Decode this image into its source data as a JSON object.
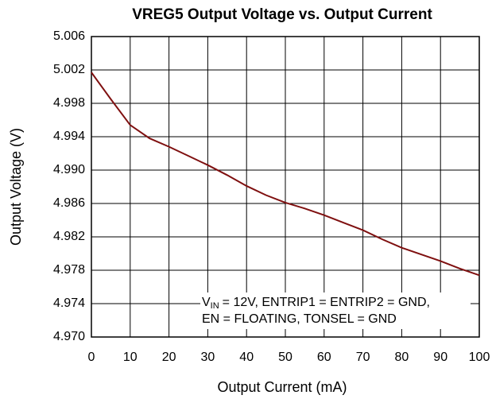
{
  "chart_data": {
    "type": "line",
    "title": "VREG5 Output Voltage vs. Output Current",
    "x_label": "Output Current  (mA)",
    "y_label": "Output Voltage (V)",
    "x": [
      0,
      5,
      10,
      15,
      20,
      25,
      30,
      35,
      40,
      45,
      50,
      55,
      60,
      65,
      70,
      75,
      80,
      85,
      90,
      95,
      100
    ],
    "series": [
      {
        "name": "VREG5",
        "color": "#7f1010",
        "values": [
          5.0017,
          4.9985,
          4.9954,
          4.9938,
          4.9928,
          4.9917,
          4.9906,
          4.9894,
          4.9881,
          4.987,
          4.9861,
          4.9854,
          4.9846,
          4.9837,
          4.9828,
          4.9817,
          4.9807,
          4.9799,
          4.9791,
          4.9782,
          4.9774
        ]
      }
    ],
    "xlim": [
      0,
      100
    ],
    "xticks": [
      0,
      10,
      20,
      30,
      40,
      50,
      60,
      70,
      80,
      90,
      100
    ],
    "ylim": [
      4.97,
      5.006
    ],
    "yticks": [
      {
        "value": 4.97,
        "label": "4.970"
      },
      4.974,
      4.978,
      4.982,
      4.986,
      {
        "value": 4.99,
        "label": "4.990"
      },
      4.994,
      4.998,
      5.002,
      5.006
    ],
    "grid": true,
    "annotation": [
      "V",
      "IN",
      "= 12V, ENTRIP1 = ENTRIP2 = GND,",
      "EN = FLOATING,  TONSEL = GND"
    ]
  }
}
